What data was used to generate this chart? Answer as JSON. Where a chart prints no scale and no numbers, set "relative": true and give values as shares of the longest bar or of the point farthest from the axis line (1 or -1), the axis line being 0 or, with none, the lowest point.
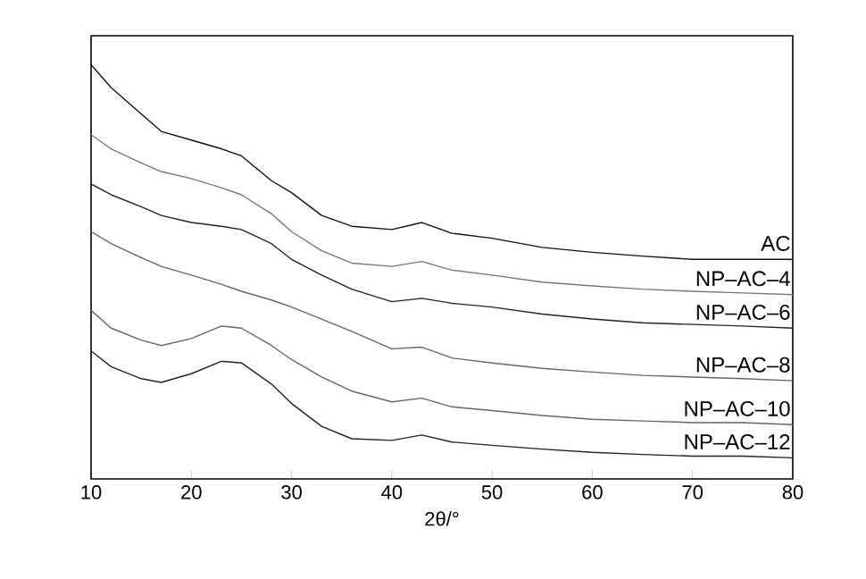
{
  "chart_data": {
    "type": "line",
    "relative": true,
    "xlabel": "2θ/°",
    "xlim": [
      10,
      80
    ],
    "xticks": [
      10,
      20,
      30,
      40,
      50,
      60,
      70,
      80
    ],
    "grid": false,
    "legend": false,
    "marker": "none",
    "line_style": "solid",
    "x": [
      10,
      12,
      15,
      17,
      20,
      23,
      25,
      28,
      30,
      33,
      36,
      40,
      43,
      46,
      50,
      55,
      60,
      65,
      70,
      75,
      80
    ],
    "series": [
      {
        "name": "AC",
        "color": "#111111",
        "values": [
          1.0,
          0.945,
          0.881,
          0.839,
          0.818,
          0.797,
          0.78,
          0.72,
          0.691,
          0.636,
          0.61,
          0.602,
          0.619,
          0.593,
          0.581,
          0.559,
          0.547,
          0.538,
          0.53,
          0.53,
          0.53
        ]
      },
      {
        "name": "NP–AC–4",
        "color": "#777777",
        "values": [
          0.831,
          0.797,
          0.763,
          0.742,
          0.725,
          0.703,
          0.686,
          0.64,
          0.597,
          0.551,
          0.521,
          0.513,
          0.525,
          0.504,
          0.492,
          0.475,
          0.466,
          0.458,
          0.453,
          0.449,
          0.445
        ]
      },
      {
        "name": "NP–AC–6",
        "color": "#222222",
        "values": [
          0.712,
          0.686,
          0.657,
          0.636,
          0.619,
          0.61,
          0.602,
          0.568,
          0.53,
          0.492,
          0.458,
          0.428,
          0.436,
          0.424,
          0.415,
          0.398,
          0.386,
          0.377,
          0.373,
          0.369,
          0.364
        ]
      },
      {
        "name": "NP–AC–8",
        "color": "#666666",
        "values": [
          0.597,
          0.568,
          0.534,
          0.513,
          0.492,
          0.47,
          0.453,
          0.432,
          0.415,
          0.386,
          0.356,
          0.314,
          0.318,
          0.292,
          0.28,
          0.267,
          0.258,
          0.25,
          0.246,
          0.242,
          0.237
        ]
      },
      {
        "name": "NP–AC–10",
        "color": "#666666",
        "values": [
          0.407,
          0.364,
          0.335,
          0.322,
          0.339,
          0.369,
          0.364,
          0.322,
          0.288,
          0.246,
          0.212,
          0.186,
          0.195,
          0.174,
          0.165,
          0.153,
          0.144,
          0.14,
          0.136,
          0.136,
          0.131
        ]
      },
      {
        "name": "NP–AC–12",
        "color": "#222222",
        "values": [
          0.309,
          0.271,
          0.242,
          0.233,
          0.254,
          0.284,
          0.28,
          0.229,
          0.182,
          0.127,
          0.097,
          0.093,
          0.106,
          0.089,
          0.081,
          0.072,
          0.064,
          0.059,
          0.055,
          0.055,
          0.051
        ]
      }
    ]
  }
}
